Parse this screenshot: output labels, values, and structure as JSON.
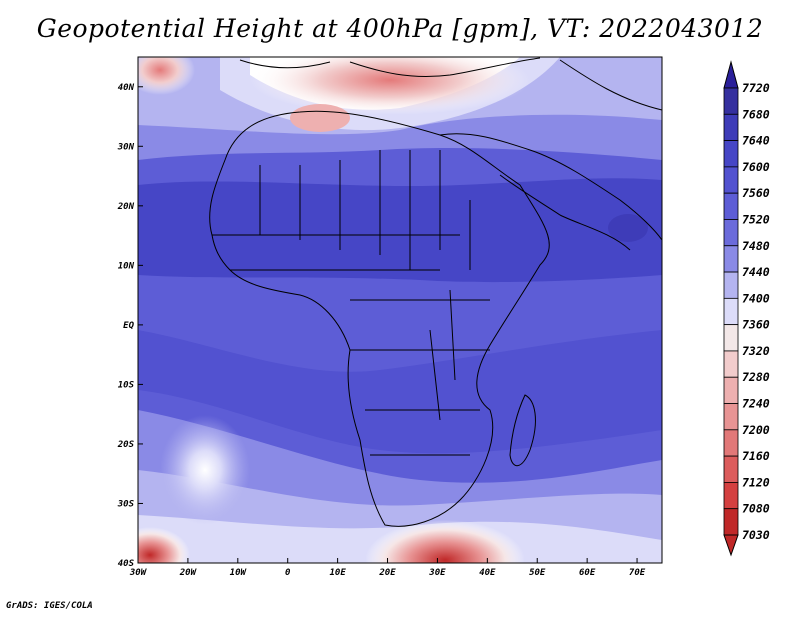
{
  "title": "Geopotential Height at 400hPa [gpm], VT: 2022043012",
  "credit": "GrADS: IGES/COLA",
  "map": {
    "lon_range": [
      -30,
      75
    ],
    "lat_range": [
      -40,
      45
    ],
    "lon_ticks": [
      "30W",
      "20W",
      "10W",
      "0",
      "10E",
      "20E",
      "30E",
      "40E",
      "50E",
      "60E",
      "70E"
    ],
    "lat_ticks": [
      "40S",
      "30S",
      "20S",
      "10S",
      "EQ",
      "10N",
      "20N",
      "30N",
      "40N"
    ]
  },
  "colorbar": {
    "levels": [
      "7720",
      "7680",
      "7640",
      "7600",
      "7560",
      "7520",
      "7480",
      "7440",
      "7400",
      "7360",
      "7320",
      "7280",
      "7240",
      "7200",
      "7160",
      "7120",
      "7080",
      "7030"
    ],
    "colors": [
      "#2a1f9a",
      "#35309f",
      "#3e3cb8",
      "#4646c6",
      "#5252d0",
      "#5d5dd6",
      "#6b6bdb",
      "#8a8ae6",
      "#b4b4f0",
      "#dcdcf9",
      "#f3e8e8",
      "#f2cccc",
      "#eeb0b0",
      "#e89494",
      "#e27878",
      "#dc5c5c",
      "#d44040",
      "#c02828"
    ]
  }
}
